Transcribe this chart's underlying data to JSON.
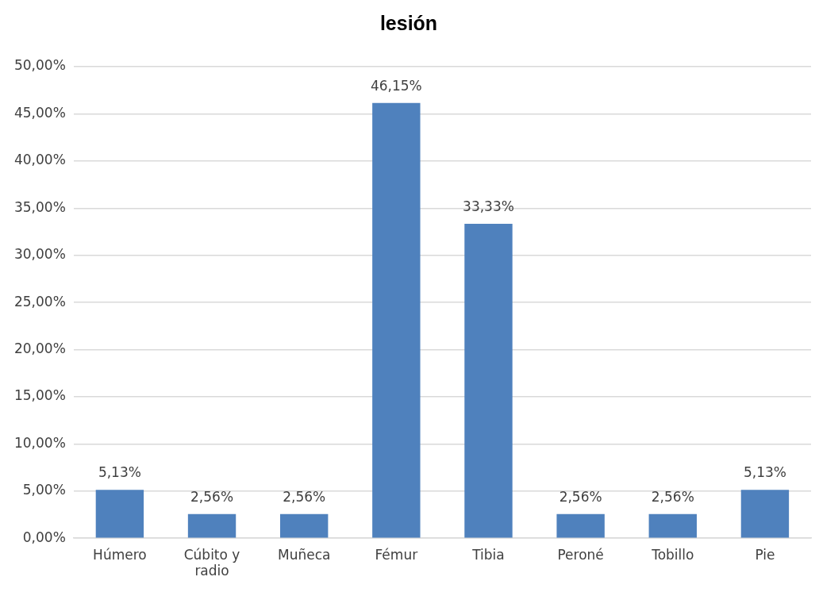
{
  "chart_data": {
    "type": "bar",
    "title": "lesión",
    "categories": [
      "Húmero",
      "Cúbito y radio",
      "Muñeca",
      "Fémur",
      "Tibia",
      "Peroné",
      "Tobillo",
      "Pie"
    ],
    "values": [
      5.13,
      2.56,
      2.56,
      46.15,
      33.33,
      2.56,
      2.56,
      5.13
    ],
    "value_labels": [
      "5,13%",
      "2,56%",
      "2,56%",
      "46,15%",
      "33,33%",
      "2,56%",
      "2,56%",
      "5,13%"
    ],
    "color": "#4f81bd",
    "ylim": [
      0,
      50
    ],
    "yticks": [
      {
        "value": 0,
        "label": "0,00%"
      },
      {
        "value": 5,
        "label": "5,00%"
      },
      {
        "value": 10,
        "label": "10,00%"
      },
      {
        "value": 15,
        "label": "15,00%"
      },
      {
        "value": 20,
        "label": "20,00%"
      },
      {
        "value": 25,
        "label": "25,00%"
      },
      {
        "value": 30,
        "label": "30,00%"
      },
      {
        "value": 35,
        "label": "35,00%"
      },
      {
        "value": 40,
        "label": "40,00%"
      },
      {
        "value": 45,
        "label": "45,00%"
      },
      {
        "value": 50,
        "label": "50,00%"
      }
    ],
    "grid": "y"
  }
}
